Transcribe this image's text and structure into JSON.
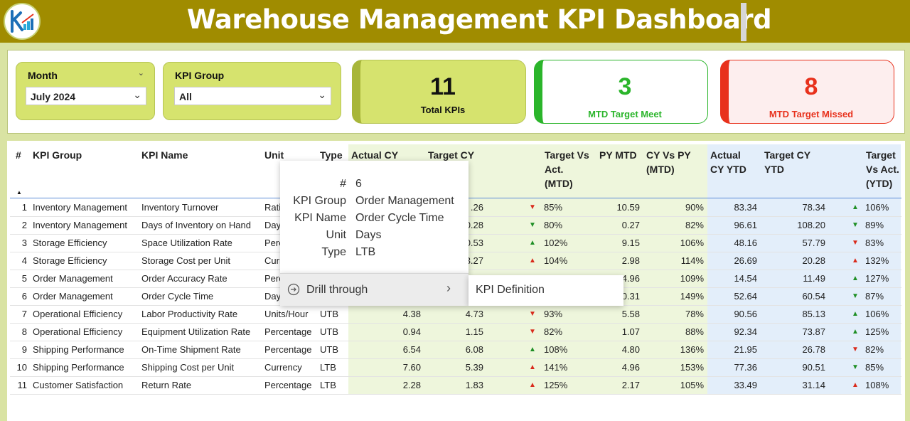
{
  "header": {
    "title": "Warehouse Management KPI Dashboard",
    "logo_icon": "kpi-logo-icon"
  },
  "slicers": {
    "month": {
      "label": "Month",
      "value": "July 2024"
    },
    "kpi_group": {
      "label": "KPI Group",
      "value": "All"
    }
  },
  "cards": {
    "total": {
      "value": "11",
      "label": "Total KPIs"
    },
    "met": {
      "value": "3",
      "label": "MTD Target Meet"
    },
    "missed": {
      "value": "8",
      "label": "MTD Target Missed"
    }
  },
  "table": {
    "headers": {
      "num": "#",
      "group": "KPI Group",
      "name": "KPI Name",
      "unit": "Unit",
      "type": "Type",
      "actual_cy": "Actual CY",
      "target_cy": "Target CY",
      "tva_mtd_1": "Target Vs",
      "tva_mtd_2": "Act.",
      "tva_mtd_3": "(MTD)",
      "py_mtd": "PY MTD",
      "cyvspy_1": "CY Vs PY",
      "cyvspy_2": "(MTD)",
      "actual_ytd_1": "Actual",
      "actual_ytd_2": "CY YTD",
      "target_ytd_1": "Target CY",
      "target_ytd_2": "YTD",
      "tva_ytd_1": "Target",
      "tva_ytd_2": "Vs Act.",
      "tva_ytd_3": "(YTD)"
    },
    "rows": [
      {
        "num": "1",
        "group": "Inventory Management",
        "name": "Inventory Turnover",
        "unit": "Rati",
        "type": "",
        "actual": "",
        "target": ".26",
        "tva": "85%",
        "py": "10.59",
        "cyvspy": "90%",
        "aytd": "83.34",
        "tytd": "78.34",
        "tvaytd": "106%"
      },
      {
        "num": "2",
        "group": "Inventory Management",
        "name": "Days of Inventory on Hand",
        "unit": "Day",
        "type": "",
        "actual": "",
        "target": "0.28",
        "tva": "80%",
        "py": "0.27",
        "cyvspy": "82%",
        "aytd": "96.61",
        "tytd": "108.20",
        "tvaytd": "89%"
      },
      {
        "num": "3",
        "group": "Storage Efficiency",
        "name": "Space Utilization Rate",
        "unit": "Perc",
        "type": "",
        "actual": "",
        "target": "0.53",
        "tva": "102%",
        "py": "9.15",
        "cyvspy": "106%",
        "aytd": "48.16",
        "tytd": "57.79",
        "tvaytd": "83%"
      },
      {
        "num": "4",
        "group": "Storage Efficiency",
        "name": "Storage Cost per Unit",
        "unit": "Curr",
        "type": "",
        "actual": "",
        "target": "3.27",
        "tva": "104%",
        "py": "2.98",
        "cyvspy": "114%",
        "aytd": "26.69",
        "tytd": "20.28",
        "tvaytd": "132%"
      },
      {
        "num": "5",
        "group": "Order Management",
        "name": "Order Accuracy Rate",
        "unit": "Perc",
        "type": "",
        "actual": "",
        "target": "",
        "tva": "",
        "py": "4.96",
        "cyvspy": "109%",
        "aytd": "14.54",
        "tytd": "11.49",
        "tvaytd": "127%"
      },
      {
        "num": "6",
        "group": "Order Management",
        "name": "Order Cycle Time",
        "unit": "Day",
        "type": "",
        "actual": "",
        "target": "",
        "tva": "",
        "py": "0.31",
        "cyvspy": "149%",
        "aytd": "52.64",
        "tytd": "60.54",
        "tvaytd": "87%"
      },
      {
        "num": "7",
        "group": "Operational Efficiency",
        "name": "Labor Productivity Rate",
        "unit": "Units/Hour",
        "type": "UTB",
        "actual": "4.38",
        "target": "4.73",
        "tva": "93%",
        "py": "5.58",
        "cyvspy": "78%",
        "aytd": "90.56",
        "tytd": "85.13",
        "tvaytd": "106%"
      },
      {
        "num": "8",
        "group": "Operational Efficiency",
        "name": "Equipment Utilization Rate",
        "unit": "Percentage",
        "type": "UTB",
        "actual": "0.94",
        "target": "1.15",
        "tva": "82%",
        "py": "1.07",
        "cyvspy": "88%",
        "aytd": "92.34",
        "tytd": "73.87",
        "tvaytd": "125%"
      },
      {
        "num": "9",
        "group": "Shipping Performance",
        "name": "On-Time Shipment Rate",
        "unit": "Percentage",
        "type": "UTB",
        "actual": "6.54",
        "target": "6.08",
        "tva": "108%",
        "py": "4.80",
        "cyvspy": "136%",
        "aytd": "21.95",
        "tytd": "26.78",
        "tvaytd": "82%"
      },
      {
        "num": "10",
        "group": "Shipping Performance",
        "name": "Shipping Cost per Unit",
        "unit": "Currency",
        "type": "LTB",
        "actual": "7.60",
        "target": "5.39",
        "tva": "141%",
        "py": "4.96",
        "cyvspy": "153%",
        "aytd": "77.36",
        "tytd": "90.51",
        "tvaytd": "85%"
      },
      {
        "num": "11",
        "group": "Customer Satisfaction",
        "name": "Return Rate",
        "unit": "Percentage",
        "type": "LTB",
        "actual": "2.28",
        "target": "1.83",
        "tva": "125%",
        "py": "2.17",
        "cyvspy": "105%",
        "aytd": "33.49",
        "tytd": "31.14",
        "tvaytd": "108%"
      }
    ],
    "mtd_arrows": [
      "down-red",
      "down-green",
      "up-green",
      "up-red",
      "",
      "",
      "down-red",
      "down-red",
      "up-green",
      "up-red",
      "up-red"
    ],
    "ytd_arrows": [
      "up-green",
      "down-green",
      "down-red",
      "up-red",
      "up-green",
      "down-green",
      "up-green",
      "up-green",
      "down-red",
      "down-green",
      "up-red"
    ]
  },
  "tooltip": {
    "k1": "#",
    "v1": "6",
    "k2": "KPI Group",
    "v2": "Order Management",
    "k3": "KPI Name",
    "v3": "Order Cycle Time",
    "k4": "Unit",
    "v4": "Days",
    "k5": "Type",
    "v5": "LTB"
  },
  "context_menu": {
    "drill_through": "Drill through",
    "submenu_item": "KPI Definition"
  },
  "colors": {
    "header_bg": "#a08c00",
    "accent_green": "#d6e36e",
    "met_green": "#2bb52b",
    "missed_red": "#e8311c"
  }
}
